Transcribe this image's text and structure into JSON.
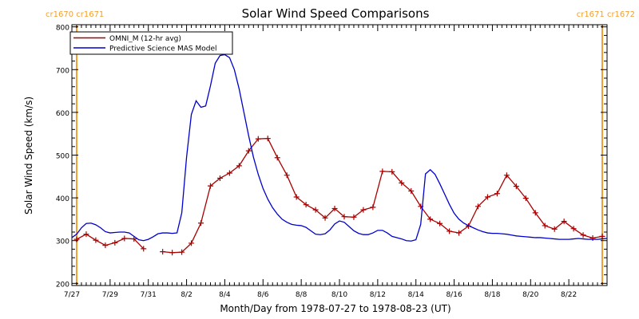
{
  "chart_data": {
    "type": "line",
    "title": "Solar Wind Speed Comparisons",
    "xlabel": "Month/Day from 1978-07-27 to 1978-08-23 (UT)",
    "ylabel": "Solar Wind Speed (km/s)",
    "x_unit": "day-of-1978",
    "xlim": [
      208.0,
      236.0
    ],
    "ylim": [
      195,
      805
    ],
    "y_ticks": [
      200,
      300,
      400,
      500,
      600,
      700,
      800
    ],
    "x_ticks": [
      {
        "label": "7/27",
        "x": 208
      },
      {
        "label": "7/29",
        "x": 210
      },
      {
        "label": "7/31",
        "x": 212
      },
      {
        "label": "8/2",
        "x": 214
      },
      {
        "label": "8/4",
        "x": 216
      },
      {
        "label": "8/6",
        "x": 218
      },
      {
        "label": "8/8",
        "x": 220
      },
      {
        "label": "8/10",
        "x": 222
      },
      {
        "label": "8/12",
        "x": 224
      },
      {
        "label": "8/14",
        "x": 226
      },
      {
        "label": "8/16",
        "x": 228
      },
      {
        "label": "8/18",
        "x": 230
      },
      {
        "label": "8/20",
        "x": 232
      },
      {
        "label": "8/22",
        "x": 234
      }
    ],
    "rotation_markers": [
      {
        "x": 208.25,
        "label": "cr1670 cr1671",
        "color": "#f0a030",
        "label_side": "left"
      },
      {
        "x": 235.75,
        "label": "cr1671 cr1672",
        "color": "#f0a030",
        "label_side": "right"
      }
    ],
    "legend_position": "top-left",
    "series": [
      {
        "name": "OMNI_M (12-hr avg)",
        "color": "#aa0000",
        "marker": "plus",
        "segments": [
          [
            [
              208.25,
              303
            ],
            [
              208.75,
              315
            ],
            [
              209.25,
              301
            ],
            [
              209.75,
              289
            ],
            [
              210.25,
              295
            ],
            [
              210.75,
              305
            ],
            [
              211.25,
              304
            ],
            [
              211.75,
              281
            ]
          ],
          [
            [
              212.75,
              274
            ],
            [
              213.25,
              272
            ],
            [
              213.75,
              273
            ],
            [
              214.25,
              294
            ],
            [
              214.75,
              341
            ],
            [
              215.25,
              428
            ],
            [
              215.75,
              446
            ],
            [
              216.25,
              458
            ],
            [
              216.75,
              475
            ],
            [
              217.25,
              510
            ],
            [
              217.75,
              538
            ],
            [
              218.25,
              539
            ],
            [
              218.75,
              494
            ],
            [
              219.25,
              453
            ],
            [
              219.75,
              402
            ],
            [
              220.25,
              384
            ],
            [
              220.75,
              372
            ],
            [
              221.25,
              353
            ],
            [
              221.75,
              375
            ],
            [
              222.25,
              356
            ],
            [
              222.75,
              355
            ],
            [
              223.25,
              372
            ],
            [
              223.75,
              378
            ],
            [
              224.25,
              462
            ],
            [
              224.75,
              461
            ],
            [
              225.25,
              435
            ],
            [
              225.75,
              416
            ],
            [
              226.25,
              380
            ],
            [
              226.75,
              350
            ],
            [
              227.25,
              340
            ],
            [
              227.75,
              322
            ],
            [
              228.25,
              318
            ],
            [
              228.75,
              334
            ],
            [
              229.25,
              380
            ],
            [
              229.75,
              402
            ],
            [
              230.25,
              410
            ],
            [
              230.75,
              453
            ],
            [
              231.25,
              427
            ],
            [
              231.75,
              399
            ],
            [
              232.25,
              365
            ],
            [
              232.75,
              335
            ],
            [
              233.25,
              327
            ],
            [
              233.75,
              345
            ],
            [
              234.25,
              328
            ],
            [
              234.75,
              313
            ],
            [
              235.25,
              306
            ],
            [
              235.75,
              310
            ]
          ]
        ]
      },
      {
        "name": "Predictive Science MAS Model",
        "color": "#0000cc",
        "marker": "none",
        "segments": [
          [
            [
              208.0,
              307
            ],
            [
              208.25,
              315
            ],
            [
              208.5,
              330
            ],
            [
              208.75,
              340
            ],
            [
              209.0,
              341
            ],
            [
              209.25,
              337
            ],
            [
              209.5,
              330
            ],
            [
              209.75,
              321
            ],
            [
              210.0,
              318
            ],
            [
              210.25,
              319
            ],
            [
              210.5,
              320
            ],
            [
              210.75,
              320
            ],
            [
              211.0,
              318
            ],
            [
              211.25,
              310
            ],
            [
              211.5,
              302
            ],
            [
              211.75,
              300
            ],
            [
              212.0,
              303
            ],
            [
              212.25,
              309
            ],
            [
              212.5,
              316
            ],
            [
              212.75,
              318
            ],
            [
              213.0,
              318
            ],
            [
              213.25,
              317
            ],
            [
              213.5,
              318
            ],
            [
              213.75,
              365
            ],
            [
              214.0,
              495
            ],
            [
              214.25,
              595
            ],
            [
              214.5,
              627
            ],
            [
              214.75,
              612
            ],
            [
              215.0,
              615
            ],
            [
              215.25,
              662
            ],
            [
              215.5,
              715
            ],
            [
              215.75,
              733
            ],
            [
              216.0,
              735
            ],
            [
              216.25,
              728
            ],
            [
              216.5,
              700
            ],
            [
              216.75,
              655
            ],
            [
              217.0,
              600
            ],
            [
              217.25,
              545
            ],
            [
              217.5,
              495
            ],
            [
              217.75,
              455
            ],
            [
              218.0,
              422
            ],
            [
              218.25,
              397
            ],
            [
              218.5,
              377
            ],
            [
              218.75,
              362
            ],
            [
              219.0,
              350
            ],
            [
              219.25,
              343
            ],
            [
              219.5,
              338
            ],
            [
              219.75,
              336
            ],
            [
              220.0,
              335
            ],
            [
              220.25,
              331
            ],
            [
              220.5,
              323
            ],
            [
              220.75,
              315
            ],
            [
              221.0,
              314
            ],
            [
              221.25,
              316
            ],
            [
              221.5,
              325
            ],
            [
              221.75,
              339
            ],
            [
              222.0,
              346
            ],
            [
              222.25,
              343
            ],
            [
              222.5,
              333
            ],
            [
              222.75,
              323
            ],
            [
              223.0,
              317
            ],
            [
              223.25,
              314
            ],
            [
              223.5,
              314
            ],
            [
              223.75,
              318
            ],
            [
              224.0,
              324
            ],
            [
              224.25,
              324
            ],
            [
              224.5,
              318
            ],
            [
              224.75,
              310
            ],
            [
              225.0,
              307
            ],
            [
              225.25,
              304
            ],
            [
              225.5,
              300
            ],
            [
              225.75,
              299
            ],
            [
              226.0,
              302
            ],
            [
              226.25,
              338
            ],
            [
              226.5,
              456
            ],
            [
              226.75,
              466
            ],
            [
              227.0,
              455
            ],
            [
              227.25,
              433
            ],
            [
              227.5,
              409
            ],
            [
              227.75,
              385
            ],
            [
              228.0,
              364
            ],
            [
              228.25,
              350
            ],
            [
              228.5,
              341
            ],
            [
              228.75,
              335
            ],
            [
              229.0,
              330
            ],
            [
              229.25,
              325
            ],
            [
              229.5,
              321
            ],
            [
              229.75,
              318
            ],
            [
              230.0,
              317
            ],
            [
              230.25,
              317
            ],
            [
              230.5,
              316
            ],
            [
              230.75,
              315
            ],
            [
              231.0,
              313
            ],
            [
              231.25,
              311
            ],
            [
              231.5,
              310
            ],
            [
              231.75,
              309
            ],
            [
              232.0,
              308
            ],
            [
              232.25,
              307
            ],
            [
              232.5,
              307
            ],
            [
              232.75,
              306
            ],
            [
              233.0,
              305
            ],
            [
              233.25,
              304
            ],
            [
              233.5,
              303
            ],
            [
              233.75,
              303
            ],
            [
              234.0,
              303
            ],
            [
              234.25,
              304
            ],
            [
              234.5,
              305
            ],
            [
              234.75,
              304
            ],
            [
              235.0,
              303
            ],
            [
              235.25,
              303
            ],
            [
              235.5,
              303
            ],
            [
              235.75,
              304
            ],
            [
              236.0,
              305
            ]
          ]
        ]
      }
    ]
  }
}
